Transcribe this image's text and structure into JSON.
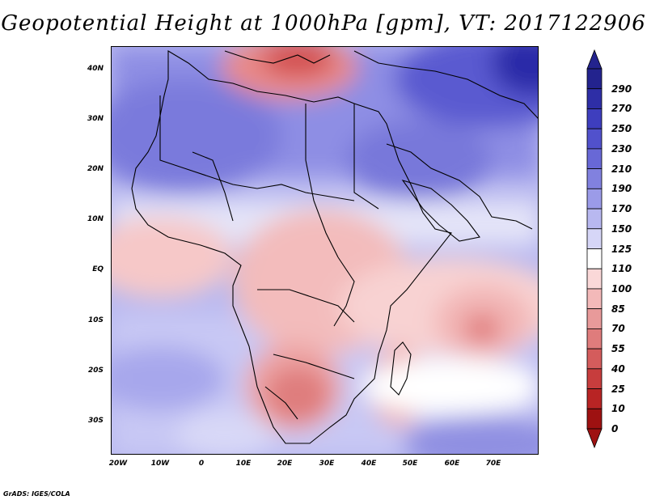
{
  "title": "Geopotential Height at 1000hPa [gpm], VT: 2017122906",
  "footer": "GrADS: IGES/COLA",
  "lat_labels": [
    "40N",
    "30N",
    "20N",
    "10N",
    "EQ",
    "10S",
    "20S",
    "30S"
  ],
  "lon_labels": [
    "20W",
    "10W",
    "0",
    "10E",
    "20E",
    "30E",
    "40E",
    "50E",
    "60E",
    "70E"
  ],
  "colorbar": {
    "levels": [
      "290",
      "270",
      "250",
      "230",
      "210",
      "190",
      "170",
      "150",
      "125",
      "110",
      "100",
      "85",
      "70",
      "55",
      "40",
      "25",
      "10",
      "0"
    ],
    "colors": [
      "#23238e",
      "#2e2ea6",
      "#3e3ebe",
      "#5151cc",
      "#6868d6",
      "#8181df",
      "#9b9be8",
      "#b8b8f0",
      "#d6d6f7",
      "#ffffff",
      "#fad8d8",
      "#f3b9b9",
      "#e89a9a",
      "#df7c7c",
      "#d45c5c",
      "#c73d3d",
      "#b82424",
      "#9e1111"
    ]
  }
}
